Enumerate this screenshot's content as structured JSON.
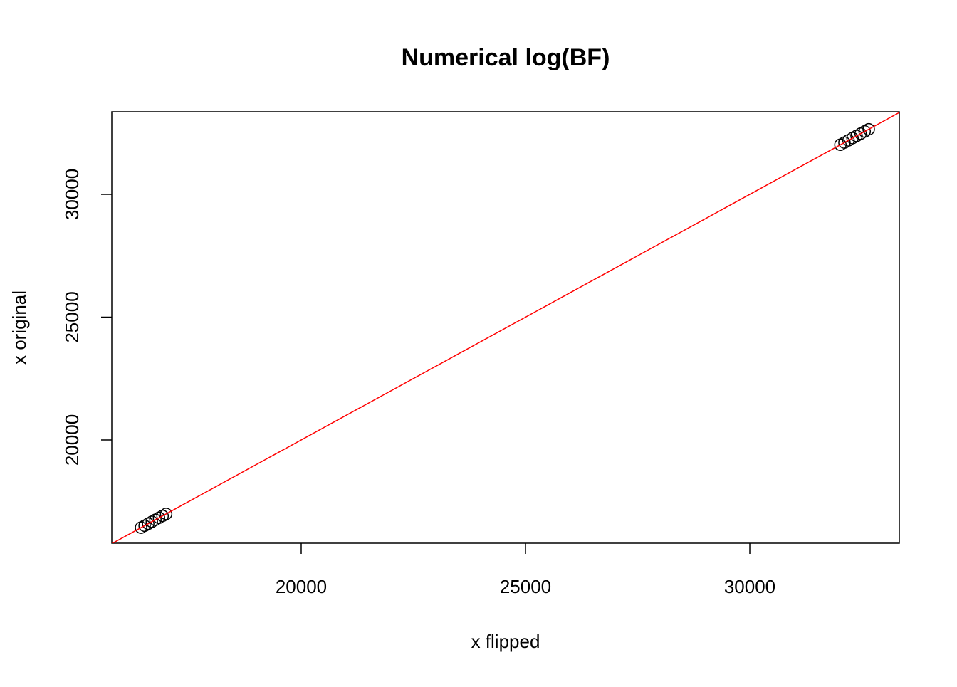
{
  "chart_data": {
    "type": "scatter",
    "title": "Numerical log(BF)",
    "x_label": "x flipped",
    "y_label": "x original",
    "x": [
      16430,
      16510,
      16590,
      16670,
      16750,
      16830,
      16910,
      16990,
      32020,
      32110,
      32200,
      32290,
      32380,
      32470,
      32560,
      32650
    ],
    "series": [
      {
        "color": "#000000",
        "values": [
          16430,
          16510,
          16590,
          16670,
          16750,
          16830,
          16910,
          16990,
          32020,
          32110,
          32200,
          32290,
          32380,
          32470,
          32560,
          32650
        ]
      }
    ],
    "xlim": [
      15778,
      33333
    ],
    "ylim": [
      15797,
      33362
    ],
    "xticks": [
      20000,
      25000,
      30000
    ],
    "yticks": [
      20000,
      25000,
      30000
    ],
    "reference_line": {
      "intercept": 0,
      "slope": 1,
      "color": "#ff0000"
    }
  }
}
